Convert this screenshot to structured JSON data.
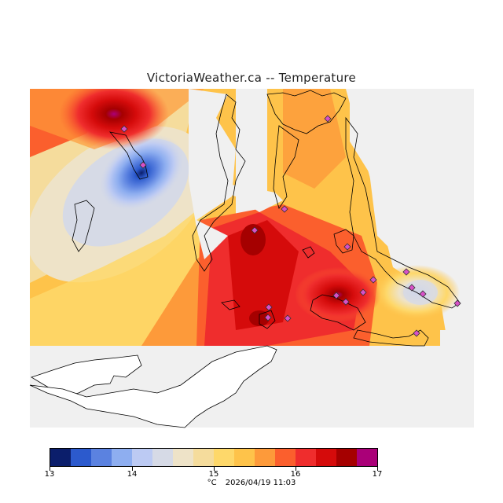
{
  "title": "VictoriaWeather.ca -- Temperature",
  "legend": {
    "unit": "°C",
    "timestamp": "2026/04/19 11:03",
    "ticks": [
      "13",
      "14",
      "15",
      "16",
      "17"
    ],
    "colors": [
      "#0b1e6b",
      "#2c5acd",
      "#5b82e0",
      "#8eaef0",
      "#bccaf3",
      "#d6dae6",
      "#eee3c8",
      "#f5dc9c",
      "#fed86a",
      "#fec34a",
      "#fd9a3a",
      "#fb5f2d",
      "#ef2d2d",
      "#d50b0b",
      "#a50000",
      "#aa0078"
    ]
  },
  "map": {
    "land_color": "#ffffff",
    "background_color": "#f0f0f0",
    "station_marker_color": "#d850c8"
  }
}
